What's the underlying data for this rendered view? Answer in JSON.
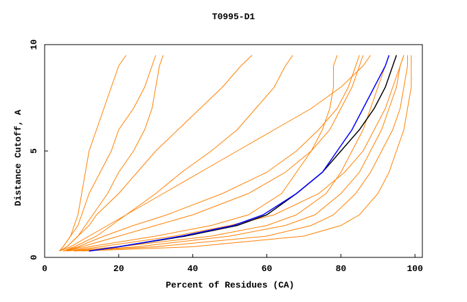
{
  "chart_data": {
    "type": "line",
    "title": "T0995-D1",
    "x_label": "Percent of Residues (CA)",
    "y_label": "Distance Cutoff, A",
    "xlim": [
      0,
      102
    ],
    "ylim": [
      0,
      10
    ],
    "xticks": [
      0,
      20,
      40,
      60,
      80,
      100
    ],
    "yticks": [
      0,
      5,
      10
    ],
    "series": [
      {
        "color": "#ff8000",
        "x": [
          4,
          5,
          7,
          8,
          9,
          10,
          11,
          12,
          14,
          16,
          18,
          20,
          22
        ],
        "values": [
          0.3,
          0.5,
          1,
          1.5,
          2,
          3,
          4,
          5,
          6,
          7,
          8,
          9,
          9.5
        ]
      },
      {
        "color": "#ff8000",
        "x": [
          4,
          6,
          9,
          11,
          13,
          17,
          20,
          24,
          27,
          29,
          30,
          31,
          32
        ],
        "values": [
          0.3,
          0.5,
          1,
          1.5,
          2,
          3,
          4,
          5,
          6,
          7,
          8,
          9,
          9.5
        ]
      },
      {
        "color": "#ff8000",
        "x": [
          5,
          8,
          14,
          18,
          22,
          30,
          37,
          45,
          52,
          57,
          62,
          65,
          67
        ],
        "values": [
          0.3,
          0.5,
          1,
          1.5,
          2,
          3,
          4,
          5,
          6,
          7,
          8,
          9,
          9.5
        ]
      },
      {
        "color": "#ff8000",
        "x": [
          5,
          12,
          30,
          45,
          55,
          64,
          68,
          72,
          75,
          77,
          78,
          78,
          79
        ],
        "values": [
          0.3,
          0.5,
          1,
          1.5,
          2,
          3,
          4,
          5,
          6,
          7,
          8,
          9,
          9.5
        ]
      },
      {
        "color": "#ff8000",
        "x": [
          6,
          20,
          45,
          60,
          68,
          76,
          80,
          83,
          86,
          88,
          90,
          92,
          93
        ],
        "values": [
          0.3,
          0.5,
          1,
          1.5,
          2,
          3,
          4,
          5,
          6,
          7,
          8,
          9,
          9.5
        ]
      },
      {
        "color": "#ff8000",
        "x": [
          8,
          30,
          60,
          72,
          78,
          84,
          88,
          91,
          94,
          96,
          97,
          98,
          98
        ],
        "values": [
          0.3,
          0.5,
          1,
          1.5,
          2,
          3,
          4,
          5,
          6,
          7,
          8,
          9,
          9.5
        ]
      },
      {
        "color": "#ff8000",
        "x": [
          10,
          40,
          70,
          80,
          85,
          90,
          93,
          95,
          97,
          98,
          99,
          99,
          99
        ],
        "values": [
          0.3,
          0.5,
          1,
          1.5,
          2,
          3,
          4,
          5,
          6,
          7,
          8,
          9,
          9.5
        ]
      },
      {
        "color": "#ff8000",
        "x": [
          6,
          15,
          35,
          50,
          62,
          74,
          81,
          86,
          89,
          92,
          94,
          96,
          97
        ],
        "values": [
          0.3,
          0.5,
          1,
          1.5,
          2,
          3,
          4,
          5,
          6,
          7,
          8,
          9,
          9.5
        ]
      },
      {
        "color": "#ff8000",
        "x": [
          5,
          9,
          16,
          24,
          33,
          48,
          60,
          68,
          74,
          79,
          82,
          84,
          85
        ],
        "values": [
          0.3,
          0.5,
          1,
          1.5,
          2,
          3,
          4,
          5,
          6,
          7,
          8,
          9,
          9.5
        ]
      },
      {
        "color": "#ff8000",
        "x": [
          4,
          7,
          12,
          17,
          22,
          32,
          42,
          52,
          62,
          72,
          80,
          86,
          88
        ],
        "values": [
          0.3,
          0.5,
          1,
          1.5,
          2,
          3,
          4,
          5,
          6,
          7,
          8,
          9,
          9.5
        ]
      },
      {
        "color": "#ff8000",
        "x": [
          4,
          6,
          9,
          12,
          14,
          20,
          25,
          30,
          36,
          42,
          48,
          53,
          56
        ],
        "values": [
          0.3,
          0.5,
          1,
          1.5,
          2,
          3,
          4,
          5,
          6,
          7,
          8,
          9,
          9.5
        ]
      },
      {
        "color": "#ff8000",
        "x": [
          8,
          25,
          50,
          65,
          73,
          80,
          85,
          88,
          91,
          93,
          95,
          96,
          97
        ],
        "values": [
          0.3,
          0.5,
          1,
          1.5,
          2,
          3,
          4,
          5,
          6,
          7,
          8,
          9,
          9.5
        ]
      },
      {
        "color": "#ff8000",
        "x": [
          5,
          10,
          20,
          30,
          40,
          55,
          65,
          72,
          77,
          80,
          83,
          85,
          86
        ],
        "values": [
          0.3,
          0.5,
          1,
          1.5,
          2,
          3,
          4,
          5,
          6,
          7,
          8,
          9,
          9.5
        ]
      },
      {
        "color": "#ff8000",
        "x": [
          4,
          5,
          7,
          9,
          10,
          12,
          15,
          18,
          20,
          24,
          27,
          29,
          30
        ],
        "values": [
          0.3,
          0.5,
          1,
          1.5,
          2,
          3,
          4,
          5,
          6,
          7,
          8,
          9,
          9.5
        ]
      },
      {
        "color": "#000000",
        "x": [
          12,
          20,
          38,
          52,
          60,
          68,
          75,
          80,
          85,
          89,
          92,
          94,
          95
        ],
        "values": [
          0.3,
          0.5,
          1,
          1.5,
          2,
          3,
          4,
          5,
          6,
          7,
          8,
          9,
          9.5
        ]
      },
      {
        "color": "#0000ff",
        "x": [
          12,
          20,
          37,
          51,
          59,
          68,
          75,
          79,
          83,
          86,
          89,
          92,
          93
        ],
        "values": [
          0.3,
          0.5,
          1,
          1.5,
          2,
          3,
          4,
          5,
          6,
          7,
          8,
          9,
          9.5
        ]
      }
    ]
  }
}
